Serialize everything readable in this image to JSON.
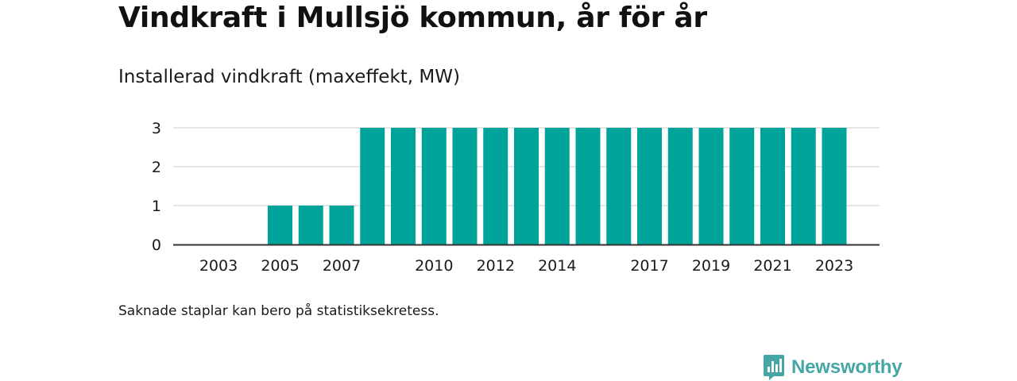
{
  "title": "Vindkraft i Mullsjö kommun, år för år",
  "subtitle": "Installerad vindkraft (maxeffekt, MW)",
  "footnote": "Saknade staplar kan bero på statistiksekretess.",
  "logo_text": "Newsworthy",
  "colors": {
    "bar": "#00a39a",
    "grid": "#dddddd",
    "axis": "#333333",
    "logo": "#45a7a5"
  },
  "chart_data": {
    "type": "bar",
    "title": "",
    "xlabel": "",
    "ylabel": "",
    "categories": [
      2003,
      2004,
      2005,
      2006,
      2007,
      2008,
      2009,
      2010,
      2011,
      2012,
      2013,
      2014,
      2015,
      2016,
      2017,
      2018,
      2019,
      2020,
      2021,
      2022,
      2023
    ],
    "values": [
      null,
      null,
      1,
      1,
      1,
      3,
      3,
      3,
      3,
      3,
      3,
      3,
      3,
      3,
      3,
      3,
      3,
      3,
      3,
      3,
      3
    ],
    "x_tick_labels": [
      "2003",
      "2005",
      "2007",
      "2010",
      "2012",
      "2014",
      "2017",
      "2019",
      "2021",
      "2023"
    ],
    "y_ticks": [
      0,
      1,
      2,
      3
    ],
    "ylim": [
      0,
      3
    ],
    "grid": true
  }
}
